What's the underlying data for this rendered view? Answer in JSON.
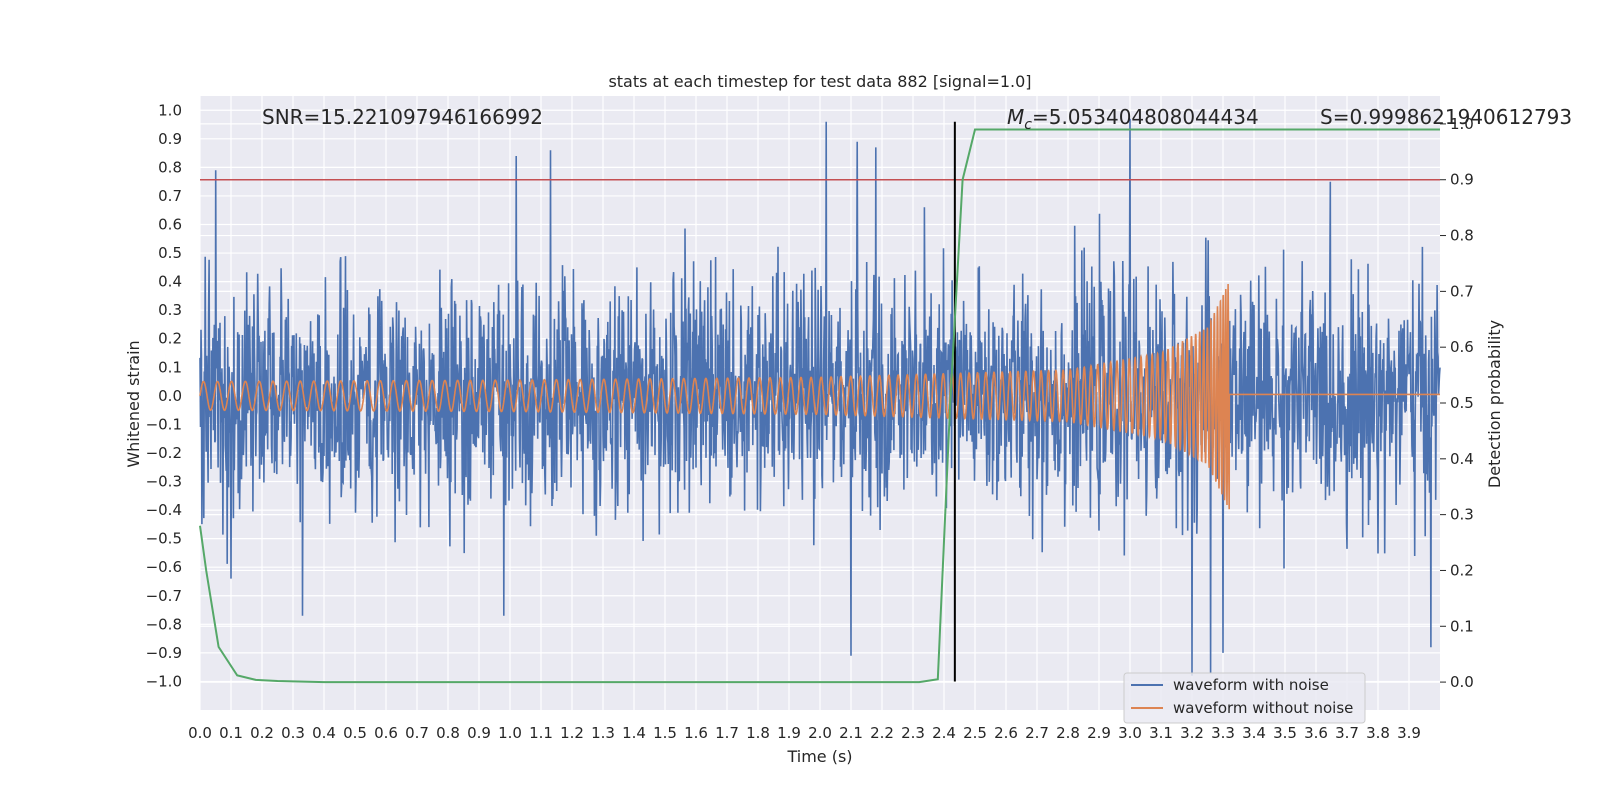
{
  "chart_data": {
    "type": "line",
    "title": "stats at each timestep for test data 882 [signal=1.0]",
    "xlabel": "Time (s)",
    "ylabel": "Whitened strain",
    "y2label": "Detection probability",
    "xlim": [
      0.0,
      4.0
    ],
    "ylim": [
      -1.1,
      1.05
    ],
    "y2lim": [
      -0.05,
      1.05
    ],
    "grid": true,
    "legend_position": "lower-right",
    "x_ticks": [
      "0.0",
      "0.1",
      "0.2",
      "0.3",
      "0.4",
      "0.5",
      "0.6",
      "0.7",
      "0.8",
      "0.9",
      "1.0",
      "1.1",
      "1.2",
      "1.3",
      "1.4",
      "1.5",
      "1.6",
      "1.7",
      "1.8",
      "1.9",
      "2.0",
      "2.1",
      "2.2",
      "2.3",
      "2.4",
      "2.5",
      "2.6",
      "2.7",
      "2.8",
      "2.9",
      "3.0",
      "3.1",
      "3.2",
      "3.3",
      "3.4",
      "3.5",
      "3.6",
      "3.7",
      "3.8",
      "3.9"
    ],
    "y_ticks": [
      "1.0",
      "0.9",
      "0.8",
      "0.7",
      "0.6",
      "0.5",
      "0.4",
      "0.3",
      "0.2",
      "0.1",
      "0.0",
      "−0.1",
      "−0.2",
      "−0.3",
      "−0.4",
      "−0.5",
      "−0.6",
      "−0.7",
      "−0.8",
      "−0.9",
      "−1.0"
    ],
    "y2_ticks": [
      "1.0",
      "0.9",
      "0.8",
      "0.7",
      "0.6",
      "0.5",
      "0.4",
      "0.3",
      "0.2",
      "0.1",
      "0.0"
    ],
    "annotations": {
      "snr": "SNR=15.221097946166992",
      "mc_symbol": "M",
      "mc_sub": "c",
      "mc_value": "=5.053404808044434",
      "s": "S=0.9998621940612793"
    },
    "series": [
      {
        "name": "waveform with noise",
        "color": "#4c72b0",
        "sigma": 0.2,
        "peaks": [
          {
            "x": 0.05,
            "y": 0.79
          },
          {
            "x": 1.02,
            "y": 0.84
          },
          {
            "x": 1.13,
            "y": 0.86
          },
          {
            "x": 2.02,
            "y": 0.96
          },
          {
            "x": 2.12,
            "y": 0.89
          },
          {
            "x": 2.18,
            "y": 0.87
          },
          {
            "x": 3.0,
            "y": 0.97
          },
          {
            "x": 0.33,
            "y": -0.77
          },
          {
            "x": 0.98,
            "y": -0.77
          },
          {
            "x": 2.1,
            "y": -0.91
          },
          {
            "x": 3.2,
            "y": -0.98
          },
          {
            "x": 3.26,
            "y": -0.97
          },
          {
            "x": 3.3,
            "y": -0.9
          },
          {
            "x": 3.97,
            "y": -0.88
          }
        ]
      },
      {
        "name": "waveform without noise",
        "color": "#dd8452",
        "envelope": [
          {
            "x": 0.0,
            "a": 0.05
          },
          {
            "x": 1.0,
            "a": 0.055
          },
          {
            "x": 2.0,
            "a": 0.065
          },
          {
            "x": 2.8,
            "a": 0.09
          },
          {
            "x": 3.1,
            "a": 0.15
          },
          {
            "x": 3.25,
            "a": 0.24
          },
          {
            "x": 3.32,
            "a": 0.4
          }
        ],
        "merger_time": 3.32,
        "ringdown_value": 0.005
      },
      {
        "name": "detection probability",
        "color": "#55a868",
        "axis": "right",
        "x": [
          0.0,
          0.02,
          0.06,
          0.12,
          0.18,
          0.25,
          0.4,
          1.0,
          2.0,
          2.32,
          2.38,
          2.42,
          2.46,
          2.5,
          4.0
        ],
        "y": [
          0.28,
          0.2,
          0.063,
          0.012,
          0.004,
          0.002,
          0.0,
          0.0,
          0.0,
          0.0,
          0.005,
          0.5,
          0.9,
          0.99,
          0.99
        ]
      }
    ],
    "threshold_line": {
      "axis": "right",
      "y": 0.9,
      "color": "#c44e52"
    },
    "event_line": {
      "x": 2.435,
      "y_start": -1.0,
      "y_end": 0.96,
      "color": "#000000"
    },
    "legend": [
      {
        "label": "waveform with noise",
        "color": "#4c72b0"
      },
      {
        "label": "waveform without noise",
        "color": "#dd8452"
      }
    ]
  }
}
